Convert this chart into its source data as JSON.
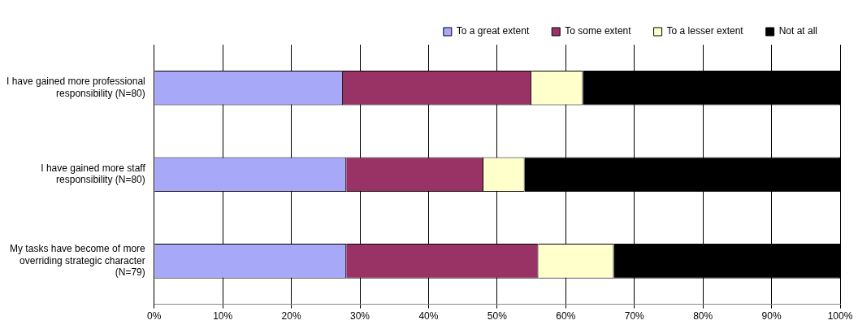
{
  "chart_data": {
    "type": "bar",
    "orientation": "horizontal",
    "stacked": true,
    "categories": [
      "I have gained more professional responsibility (N=80)",
      "I have gained more staff responsibility (N=80)",
      "My tasks have become of more overriding strategic character (N=79)"
    ],
    "series": [
      {
        "name": "To a great extent",
        "color": "#a8a8f8",
        "values": [
          27.5,
          28,
          28
        ]
      },
      {
        "name": "To some extent",
        "color": "#993366",
        "values": [
          27.5,
          20,
          28
        ]
      },
      {
        "name": "To a lesser extent",
        "color": "#ffffcc",
        "values": [
          7.5,
          6,
          11
        ]
      },
      {
        "name": "Not at all",
        "color": "#000000",
        "values": [
          37.5,
          46,
          33
        ]
      }
    ],
    "xlim": [
      0,
      100
    ],
    "xticks": [
      {
        "value": 0,
        "label": "0%"
      },
      {
        "value": 10,
        "label": "10%"
      },
      {
        "value": 20,
        "label": "20%"
      },
      {
        "value": 30,
        "label": "30%"
      },
      {
        "value": 40,
        "label": "40%"
      },
      {
        "value": 50,
        "label": "50%"
      },
      {
        "value": 60,
        "label": "60%"
      },
      {
        "value": 70,
        "label": "70%"
      },
      {
        "value": 80,
        "label": "80%"
      },
      {
        "value": 90,
        "label": "90%"
      },
      {
        "value": 100,
        "label": "100%"
      }
    ],
    "grid": "x",
    "legend": "top right"
  }
}
